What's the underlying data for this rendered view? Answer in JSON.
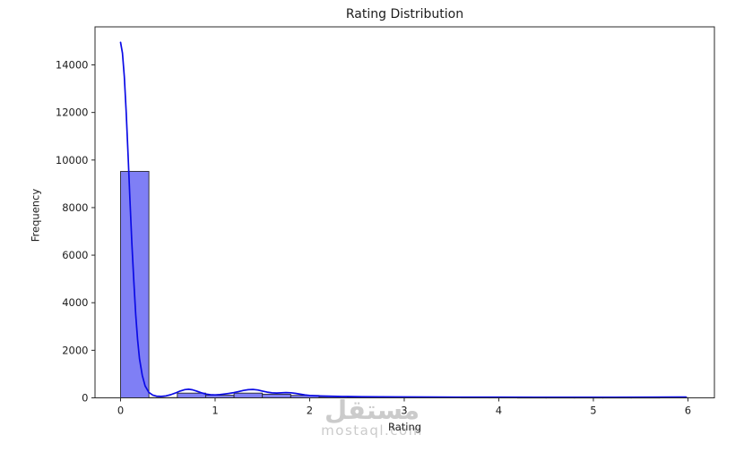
{
  "figure": {
    "background": "#ffffff"
  },
  "watermark": {
    "arabic": "مستقل",
    "domain": "mostaql.com",
    "color": "#cbcbcb"
  },
  "chart_data": {
    "type": "bar",
    "variant": "histogram_with_kde_overlay",
    "title": "Rating Distribution",
    "xlabel": "Rating",
    "ylabel": "Frequency",
    "xlim": [
      -0.27,
      6.28
    ],
    "ylim": [
      0,
      15600
    ],
    "x_ticks": [
      0,
      1,
      2,
      3,
      4,
      5,
      6
    ],
    "y_ticks": [
      0,
      2000,
      4000,
      6000,
      8000,
      10000,
      12000,
      14000
    ],
    "grid": false,
    "legend": false,
    "histogram": {
      "bin_start": 0,
      "bin_width": 0.3,
      "counts": [
        9520,
        10,
        200,
        110,
        200,
        150,
        100,
        50,
        30,
        22,
        18,
        14,
        12,
        10,
        9,
        8,
        8,
        8,
        8,
        10
      ]
    },
    "kde_series": {
      "name": "kde",
      "peak_value": 14950,
      "points": [
        [
          0.0,
          14950
        ],
        [
          0.02,
          14500
        ],
        [
          0.04,
          13500
        ],
        [
          0.06,
          12000
        ],
        [
          0.08,
          10200
        ],
        [
          0.1,
          8300
        ],
        [
          0.12,
          6500
        ],
        [
          0.14,
          4900
        ],
        [
          0.16,
          3500
        ],
        [
          0.18,
          2450
        ],
        [
          0.2,
          1650
        ],
        [
          0.23,
          950
        ],
        [
          0.26,
          500
        ],
        [
          0.3,
          230
        ],
        [
          0.34,
          115
        ],
        [
          0.38,
          72
        ],
        [
          0.43,
          60
        ],
        [
          0.48,
          82
        ],
        [
          0.53,
          130
        ],
        [
          0.58,
          205
        ],
        [
          0.63,
          285
        ],
        [
          0.68,
          345
        ],
        [
          0.72,
          362
        ],
        [
          0.76,
          340
        ],
        [
          0.8,
          290
        ],
        [
          0.85,
          220
        ],
        [
          0.9,
          162
        ],
        [
          0.95,
          132
        ],
        [
          1.0,
          125
        ],
        [
          1.05,
          140
        ],
        [
          1.1,
          162
        ],
        [
          1.15,
          188
        ],
        [
          1.2,
          222
        ],
        [
          1.25,
          268
        ],
        [
          1.3,
          312
        ],
        [
          1.35,
          342
        ],
        [
          1.4,
          352
        ],
        [
          1.45,
          330
        ],
        [
          1.5,
          286
        ],
        [
          1.55,
          240
        ],
        [
          1.6,
          212
        ],
        [
          1.65,
          202
        ],
        [
          1.7,
          212
        ],
        [
          1.75,
          222
        ],
        [
          1.8,
          215
        ],
        [
          1.85,
          190
        ],
        [
          1.9,
          156
        ],
        [
          1.95,
          126
        ],
        [
          2.0,
          102
        ],
        [
          2.1,
          82
        ],
        [
          2.2,
          70
        ],
        [
          2.3,
          62
        ],
        [
          2.4,
          56
        ],
        [
          2.55,
          48
        ],
        [
          2.75,
          42
        ],
        [
          3.0,
          38
        ],
        [
          3.3,
          34
        ],
        [
          3.6,
          31
        ],
        [
          4.0,
          29
        ],
        [
          4.4,
          28
        ],
        [
          4.8,
          28
        ],
        [
          5.2,
          28
        ],
        [
          5.6,
          29
        ],
        [
          5.9,
          32
        ],
        [
          5.98,
          34
        ]
      ]
    },
    "colors": {
      "bar_fill": "#7f7ff5",
      "bar_edge": "#27272f",
      "line": "#0b0be6",
      "axis": "#2a2a2a",
      "text": "#1c1c1c",
      "plot_bg": "#ffffff"
    }
  }
}
